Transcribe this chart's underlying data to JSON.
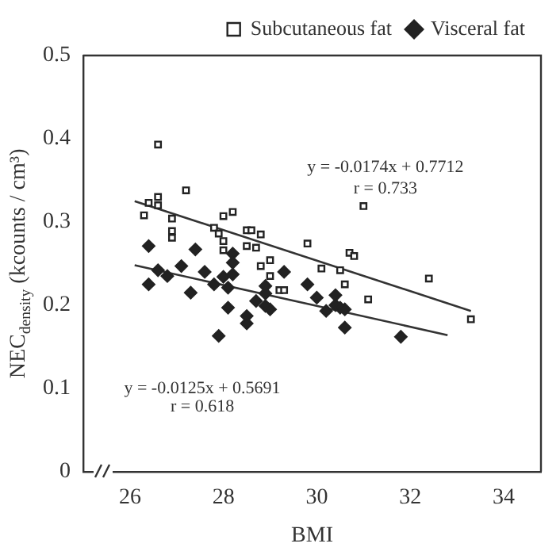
{
  "chart_data": {
    "type": "scatter",
    "xlabel": "BMI",
    "ylabel": "NEC$_{density}$ (kcounts / cm³)",
    "xlim": [
      25,
      34.8
    ],
    "xticks": [
      26,
      28,
      30,
      32,
      34
    ],
    "ylim": [
      0,
      0.5
    ],
    "yticks": [
      0,
      0.1,
      0.2,
      0.3,
      0.4,
      0.5
    ],
    "grid": false,
    "legend": "top right",
    "annotations": [
      "y = -0.0174x + 0.7712",
      "r = 0.733",
      "y = -0.0125x + 0.5691",
      "r = 0.618"
    ],
    "series": [
      {
        "name": "Subcutaneous fat",
        "color": "#222222",
        "marker": "square",
        "x": [
          26.3,
          26.4,
          26.6,
          26.6,
          26.6,
          26.9,
          26.9,
          26.9,
          27.2,
          27.8,
          27.9,
          28.0,
          28.0,
          28.0,
          28.2,
          28.5,
          28.5,
          28.6,
          28.7,
          28.8,
          28.8,
          29.0,
          29.0,
          29.2,
          29.3,
          29.8,
          30.1,
          30.5,
          30.6,
          30.7,
          30.8,
          31.0,
          31.1,
          32.4,
          33.3
        ],
        "values": [
          0.308,
          0.323,
          0.393,
          0.33,
          0.32,
          0.304,
          0.289,
          0.281,
          0.338,
          0.293,
          0.286,
          0.307,
          0.277,
          0.266,
          0.312,
          0.29,
          0.271,
          0.29,
          0.269,
          0.285,
          0.247,
          0.254,
          0.235,
          0.218,
          0.218,
          0.274,
          0.244,
          0.242,
          0.225,
          0.263,
          0.259,
          0.319,
          0.207,
          0.232,
          0.183
        ]
      },
      {
        "name": "Visceral fat",
        "color": "#222222",
        "marker": "diamond",
        "x": [
          26.4,
          26.4,
          26.6,
          26.8,
          27.1,
          27.3,
          27.4,
          27.6,
          27.8,
          27.9,
          28.0,
          28.1,
          28.1,
          28.2,
          28.2,
          28.2,
          28.5,
          28.5,
          28.7,
          28.9,
          28.9,
          28.9,
          29.0,
          29.3,
          29.8,
          30.0,
          30.2,
          30.4,
          30.4,
          30.5,
          30.6,
          30.6,
          31.8
        ],
        "values": [
          0.271,
          0.225,
          0.242,
          0.235,
          0.247,
          0.215,
          0.267,
          0.24,
          0.225,
          0.163,
          0.234,
          0.221,
          0.197,
          0.262,
          0.251,
          0.237,
          0.187,
          0.178,
          0.205,
          0.223,
          0.214,
          0.199,
          0.195,
          0.24,
          0.225,
          0.209,
          0.193,
          0.212,
          0.2,
          0.197,
          0.195,
          0.173,
          0.162
        ]
      },
      {
        "type": "line",
        "color": "#333333",
        "marker": "none",
        "x": [
          26.1,
          33.3
        ],
        "values": [
          0.325,
          0.193
        ]
      },
      {
        "type": "line",
        "color": "#333333",
        "marker": "none",
        "x": [
          26.1,
          32.8
        ],
        "values": [
          0.248,
          0.164
        ]
      }
    ]
  }
}
